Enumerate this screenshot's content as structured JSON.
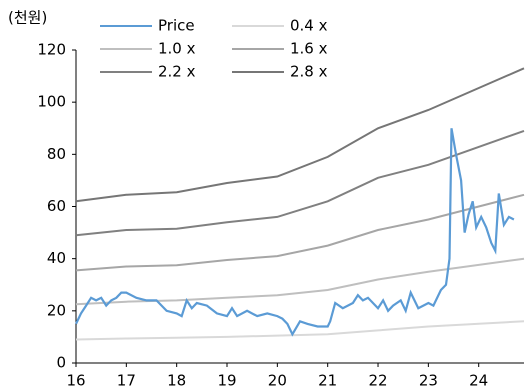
{
  "chart_data": {
    "type": "line",
    "y_label": "(천원)",
    "xlim": [
      16,
      24.9
    ],
    "xticks": [
      16,
      17,
      18,
      19,
      20,
      21,
      22,
      23,
      24
    ],
    "ylim": [
      0,
      120
    ],
    "yticks": [
      0,
      20,
      40,
      60,
      80,
      100,
      120
    ],
    "grid": false,
    "series": [
      {
        "name": "Price",
        "color": "#5b9bd5",
        "x": [
          16.0,
          16.1,
          16.2,
          16.3,
          16.4,
          16.5,
          16.6,
          16.7,
          16.8,
          16.9,
          17.0,
          17.2,
          17.4,
          17.6,
          17.7,
          17.8,
          18.0,
          18.1,
          18.2,
          18.3,
          18.4,
          18.6,
          18.8,
          19.0,
          19.1,
          19.2,
          19.4,
          19.6,
          19.8,
          20.0,
          20.1,
          20.2,
          20.3,
          20.45,
          20.6,
          20.8,
          21.0,
          21.05,
          21.15,
          21.3,
          21.5,
          21.6,
          21.7,
          21.8,
          22.0,
          22.1,
          22.2,
          22.3,
          22.45,
          22.55,
          22.65,
          22.8,
          23.0,
          23.1,
          23.25,
          23.35,
          23.42,
          23.46,
          23.55,
          23.65,
          23.72,
          23.8,
          23.88,
          23.95,
          24.05,
          24.15,
          24.25,
          24.33,
          24.4,
          24.5,
          24.6,
          24.7
        ],
        "values": [
          15,
          19,
          22,
          25,
          24,
          25,
          22,
          24,
          25,
          27,
          27,
          25,
          24,
          24,
          22,
          20,
          19,
          18,
          24,
          21,
          23,
          22,
          19,
          18,
          21,
          18,
          20,
          18,
          19,
          18,
          17,
          15,
          11,
          16,
          15,
          14,
          14,
          16,
          23,
          21,
          23,
          26,
          24,
          25,
          21,
          24,
          20,
          22,
          24,
          20,
          27,
          21,
          23,
          22,
          28,
          30,
          40,
          90,
          80,
          70,
          50,
          57,
          62,
          52,
          56,
          52,
          46,
          43,
          65,
          53,
          56,
          55
        ]
      },
      {
        "name": "0.4 x",
        "color": "#d9d9d9",
        "x": [
          16,
          17,
          18,
          19,
          20,
          21,
          22,
          23,
          24.9
        ],
        "values": [
          9,
          9.4,
          9.7,
          10,
          10.5,
          11,
          12.5,
          14,
          16
        ]
      },
      {
        "name": "1.0 x",
        "color": "#bfbfbf",
        "x": [
          16,
          17,
          18,
          19,
          20,
          21,
          22,
          23,
          24.9
        ],
        "values": [
          22.5,
          23.5,
          24,
          25,
          26,
          28,
          32,
          35,
          40
        ]
      },
      {
        "name": "1.6 x",
        "color": "#a6a6a6",
        "x": [
          16,
          17,
          18,
          19,
          20,
          21,
          22,
          23,
          24.9
        ],
        "values": [
          35.5,
          37,
          37.5,
          39.5,
          41,
          45,
          51,
          55,
          64.5
        ]
      },
      {
        "name": "2.2 x",
        "color": "#808080",
        "x": [
          16,
          17,
          18,
          19,
          20,
          21,
          22,
          23,
          24.9
        ],
        "values": [
          49,
          51,
          51.5,
          54,
          56,
          62,
          71,
          76,
          89
        ]
      },
      {
        "name": "2.8 x",
        "color": "#767676",
        "x": [
          16,
          17,
          18,
          19,
          20,
          21,
          22,
          23,
          24.9
        ],
        "values": [
          62,
          64.5,
          65.5,
          69,
          71.5,
          79,
          90,
          97,
          113
        ]
      }
    ]
  }
}
